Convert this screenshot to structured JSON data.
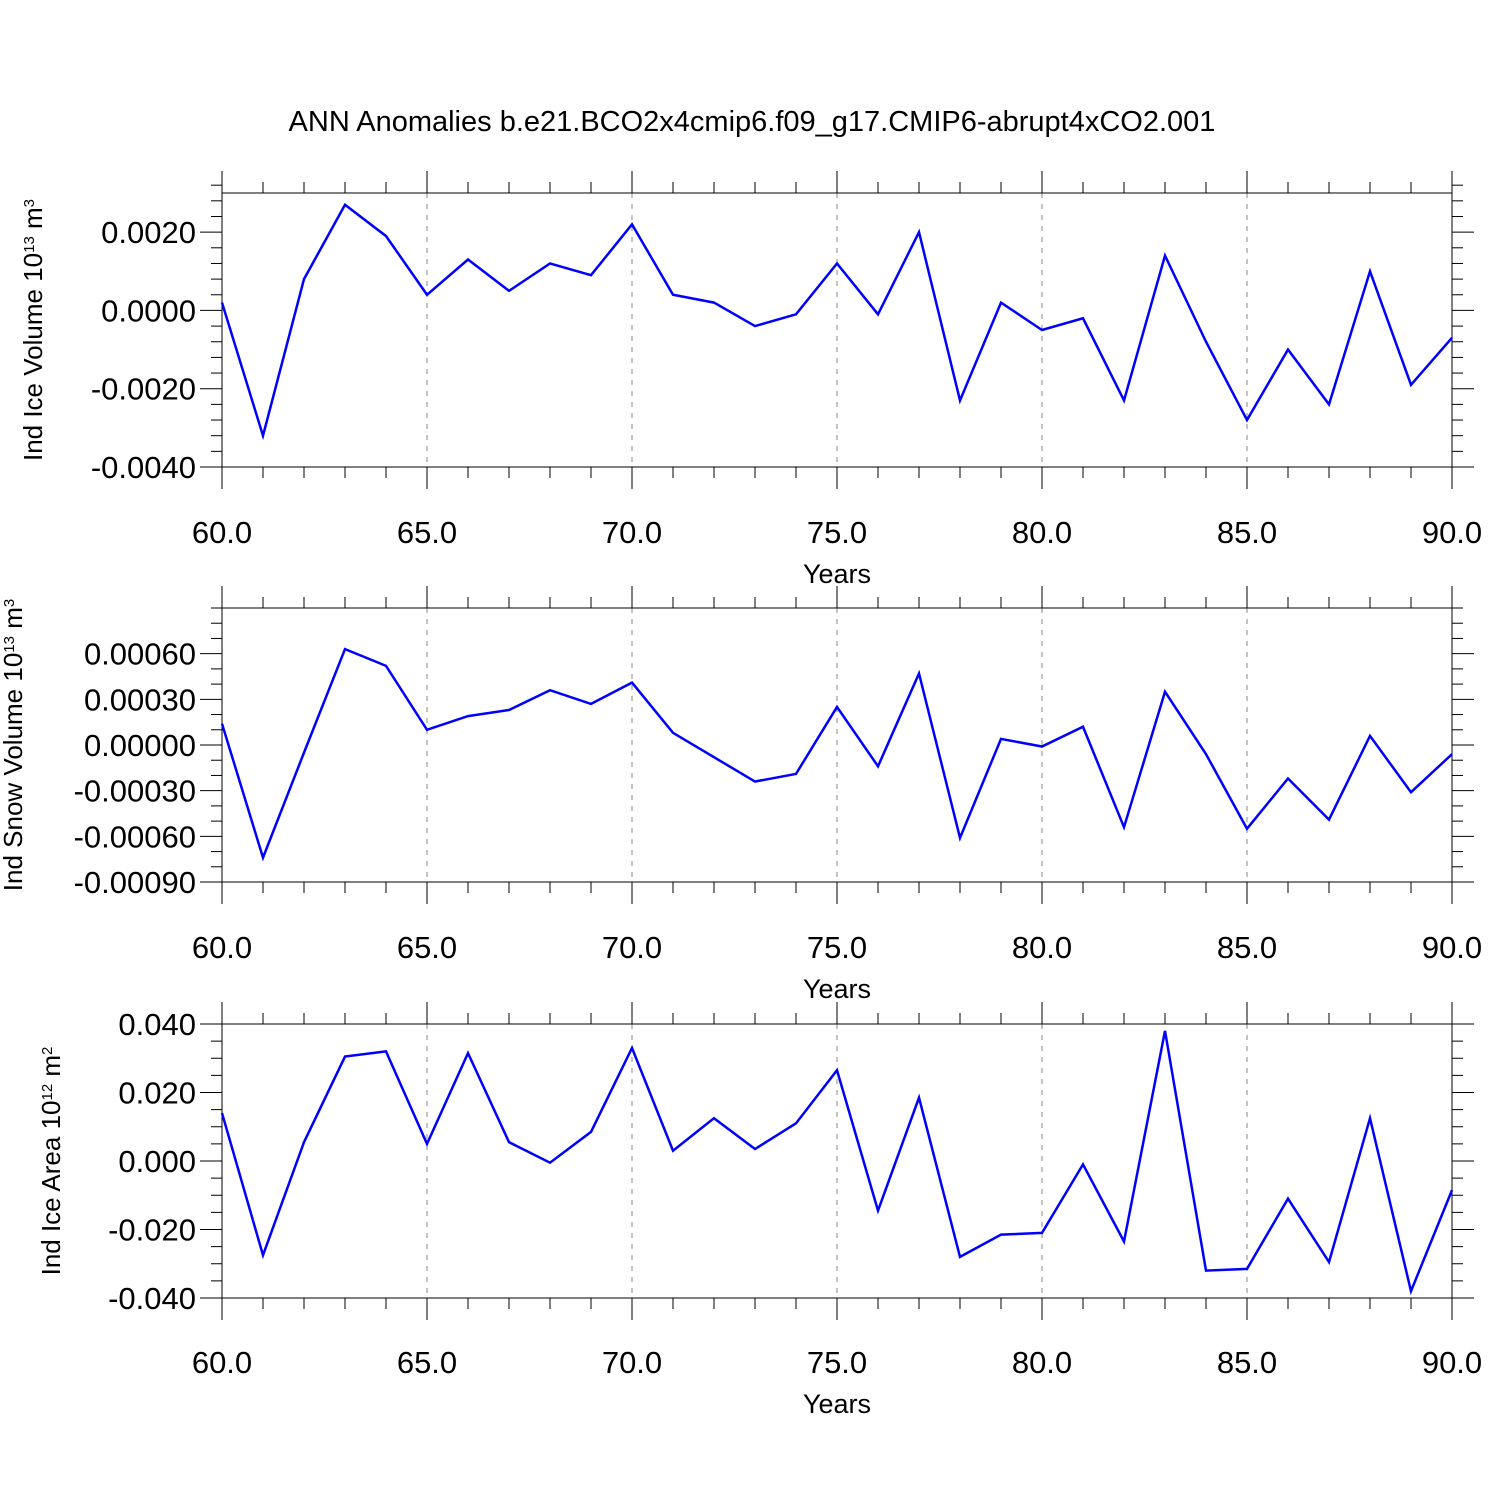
{
  "figure_title": "ANN Anomalies b.e21.BCO2x4cmip6.f09_g17.CMIP6-abrupt4xCO2.001",
  "line_color": "#0000ff",
  "chart_data": [
    {
      "type": "line",
      "title": "",
      "xlabel": "Years",
      "ylabel": {
        "text": "Ind Ice Volume 10",
        "sup": "13",
        "unit": " m",
        "unit_sup": "3"
      },
      "xlim": [
        60,
        90
      ],
      "ylim": [
        -0.004,
        0.003
      ],
      "x_ticks": [
        60,
        65,
        70,
        75,
        80,
        85,
        90
      ],
      "x_tick_labels": [
        "60.0",
        "65.0",
        "70.0",
        "75.0",
        "80.0",
        "85.0",
        "90.0"
      ],
      "y_ticks": [
        -0.004,
        -0.002,
        0,
        0.002
      ],
      "y_tick_labels": [
        "-0.0040",
        "-0.0020",
        "0.0000",
        "0.0020"
      ],
      "y_minor_step": 0.0004,
      "grid": "x-dashed",
      "series": [
        {
          "x": [
            60,
            61,
            62,
            63,
            64,
            65,
            66,
            67,
            68,
            69,
            70,
            71,
            72,
            73,
            74,
            75,
            76,
            77,
            78,
            79,
            80,
            81,
            82,
            83,
            84,
            85,
            86,
            87,
            88,
            89,
            90
          ],
          "values": [
            0.0002,
            -0.0032,
            0.0008,
            0.0027,
            0.0019,
            0.0004,
            0.0013,
            0.0005,
            0.0012,
            0.0009,
            0.0022,
            0.0004,
            0.0002,
            -0.0004,
            -0.0001,
            0.0012,
            -0.0001,
            0.002,
            -0.0023,
            0.0002,
            -0.0005,
            -0.0002,
            -0.0023,
            0.0014,
            -0.0008,
            -0.0028,
            -0.001,
            -0.0024,
            0.001,
            -0.0019,
            -0.0007
          ]
        }
      ]
    },
    {
      "type": "line",
      "title": "",
      "xlabel": "Years",
      "ylabel": {
        "text": "Ind Snow Volume 10",
        "sup": "13",
        "unit": " m",
        "unit_sup": "3"
      },
      "xlim": [
        60,
        90
      ],
      "ylim": [
        -0.0009,
        0.0009
      ],
      "x_ticks": [
        60,
        65,
        70,
        75,
        80,
        85,
        90
      ],
      "x_tick_labels": [
        "60.0",
        "65.0",
        "70.0",
        "75.0",
        "80.0",
        "85.0",
        "90.0"
      ],
      "y_ticks": [
        -0.0009,
        -0.0006,
        -0.0003,
        0,
        0.0003,
        0.0006
      ],
      "y_tick_labels": [
        "-0.00090",
        "-0.00060",
        "-0.00030",
        "0.00000",
        "0.00030",
        "0.00060"
      ],
      "y_minor_step": 0.0001,
      "grid": "x-dashed",
      "series": [
        {
          "x": [
            60,
            61,
            62,
            63,
            64,
            65,
            66,
            67,
            68,
            69,
            70,
            71,
            72,
            73,
            74,
            75,
            76,
            77,
            78,
            79,
            80,
            81,
            82,
            83,
            84,
            85,
            86,
            87,
            88,
            89,
            90
          ],
          "values": [
            0.00014,
            -0.00074,
            -5e-05,
            0.00063,
            0.00052,
            0.0001,
            0.00019,
            0.00023,
            0.00036,
            0.00027,
            0.00041,
            8e-05,
            -8e-05,
            -0.00024,
            -0.00019,
            0.00025,
            -0.00014,
            0.00047,
            -0.00061,
            4e-05,
            -1e-05,
            0.00012,
            -0.00054,
            0.00035,
            -6e-05,
            -0.00055,
            -0.00022,
            -0.00049,
            6e-05,
            -0.00031,
            -6e-05
          ]
        }
      ]
    },
    {
      "type": "line",
      "title": "",
      "xlabel": "Years",
      "ylabel": {
        "text": "Ind Ice Area 10",
        "sup": "12",
        "unit": " m",
        "unit_sup": "2"
      },
      "xlim": [
        60,
        90
      ],
      "ylim": [
        -0.04,
        0.04
      ],
      "x_ticks": [
        60,
        65,
        70,
        75,
        80,
        85,
        90
      ],
      "x_tick_labels": [
        "60.0",
        "65.0",
        "70.0",
        "75.0",
        "80.0",
        "85.0",
        "90.0"
      ],
      "y_ticks": [
        -0.04,
        -0.02,
        0,
        0.02,
        0.04
      ],
      "y_tick_labels": [
        "-0.040",
        "-0.020",
        "0.000",
        "0.020",
        "0.040"
      ],
      "y_minor_step": 0.005,
      "grid": "x-dashed",
      "series": [
        {
          "x": [
            60,
            61,
            62,
            63,
            64,
            65,
            66,
            67,
            68,
            69,
            70,
            71,
            72,
            73,
            74,
            75,
            76,
            77,
            78,
            79,
            80,
            81,
            82,
            83,
            84,
            85,
            86,
            87,
            88,
            89,
            90
          ],
          "values": [
            0.014,
            -0.0275,
            0.0055,
            0.0305,
            0.032,
            0.005,
            0.0315,
            0.0055,
            -0.0005,
            0.0085,
            0.033,
            0.003,
            0.0125,
            0.0035,
            0.011,
            0.0265,
            -0.0145,
            0.0185,
            -0.028,
            -0.0215,
            -0.021,
            -0.001,
            -0.0235,
            0.038,
            -0.032,
            -0.0315,
            -0.011,
            -0.0295,
            0.0125,
            -0.038,
            -0.0085
          ]
        }
      ]
    }
  ]
}
